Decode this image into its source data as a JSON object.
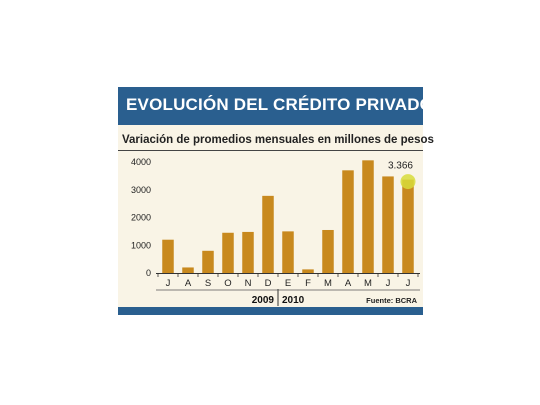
{
  "header": {
    "title": "EVOLUCIÓN DEL CRÉDITO PRIVADO"
  },
  "chart_data": {
    "type": "bar",
    "title": "EVOLUCIÓN DEL CRÉDITO PRIVADO",
    "subtitle": "Variación de promedios mensuales en millones de pesos",
    "categories": [
      "J",
      "A",
      "S",
      "O",
      "N",
      "D",
      "E",
      "F",
      "M",
      "A",
      "M",
      "J",
      "J"
    ],
    "values": [
      1200,
      200,
      800,
      1450,
      1480,
      2780,
      1500,
      130,
      1550,
      3700,
      4060,
      3480,
      3366
    ],
    "ylim": [
      0,
      4000
    ],
    "yticks": [
      0,
      1000,
      2000,
      3000,
      4000
    ],
    "ytick_labels": [
      "0",
      "1000",
      "2000",
      "3000",
      "4000"
    ],
    "year_labels": [
      "2009",
      "2010"
    ],
    "annotation": "3.366",
    "source": "Fuente: BCRA",
    "bar_color": "#c8891e",
    "highlight_color": "#d8dc3a",
    "title_bar_color": "#2a5f8f",
    "grid": false
  }
}
